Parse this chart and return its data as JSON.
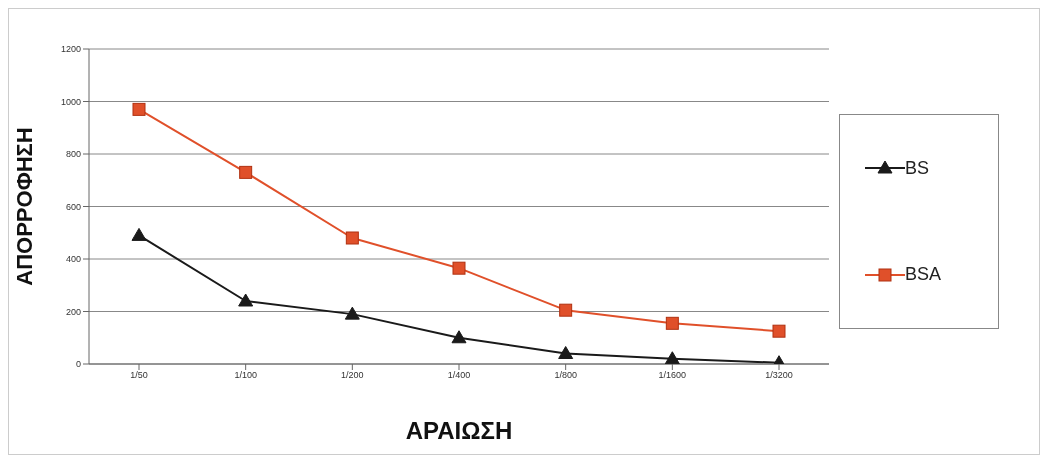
{
  "chart_data": {
    "type": "line",
    "xlabel": "ΑΡΑΙΩΣΗ",
    "ylabel": "ΑΠΟΡΡΟΦΗΣΗ",
    "categories": [
      "1/50",
      "1/100",
      "1/200",
      "1/400",
      "1/800",
      "1/1600",
      "1/3200"
    ],
    "series": [
      {
        "name": "BS",
        "color": "#1a1a1a",
        "marker": "triangle",
        "values": [
          490,
          240,
          190,
          100,
          40,
          20,
          5
        ]
      },
      {
        "name": "BSA",
        "color": "#e0502a",
        "marker": "square",
        "values": [
          970,
          730,
          480,
          365,
          205,
          155,
          125
        ]
      }
    ],
    "ylim": [
      0,
      1200
    ],
    "yticks": [
      0,
      200,
      400,
      600,
      800,
      1000,
      1200
    ],
    "grid": "y",
    "legend": "right"
  }
}
